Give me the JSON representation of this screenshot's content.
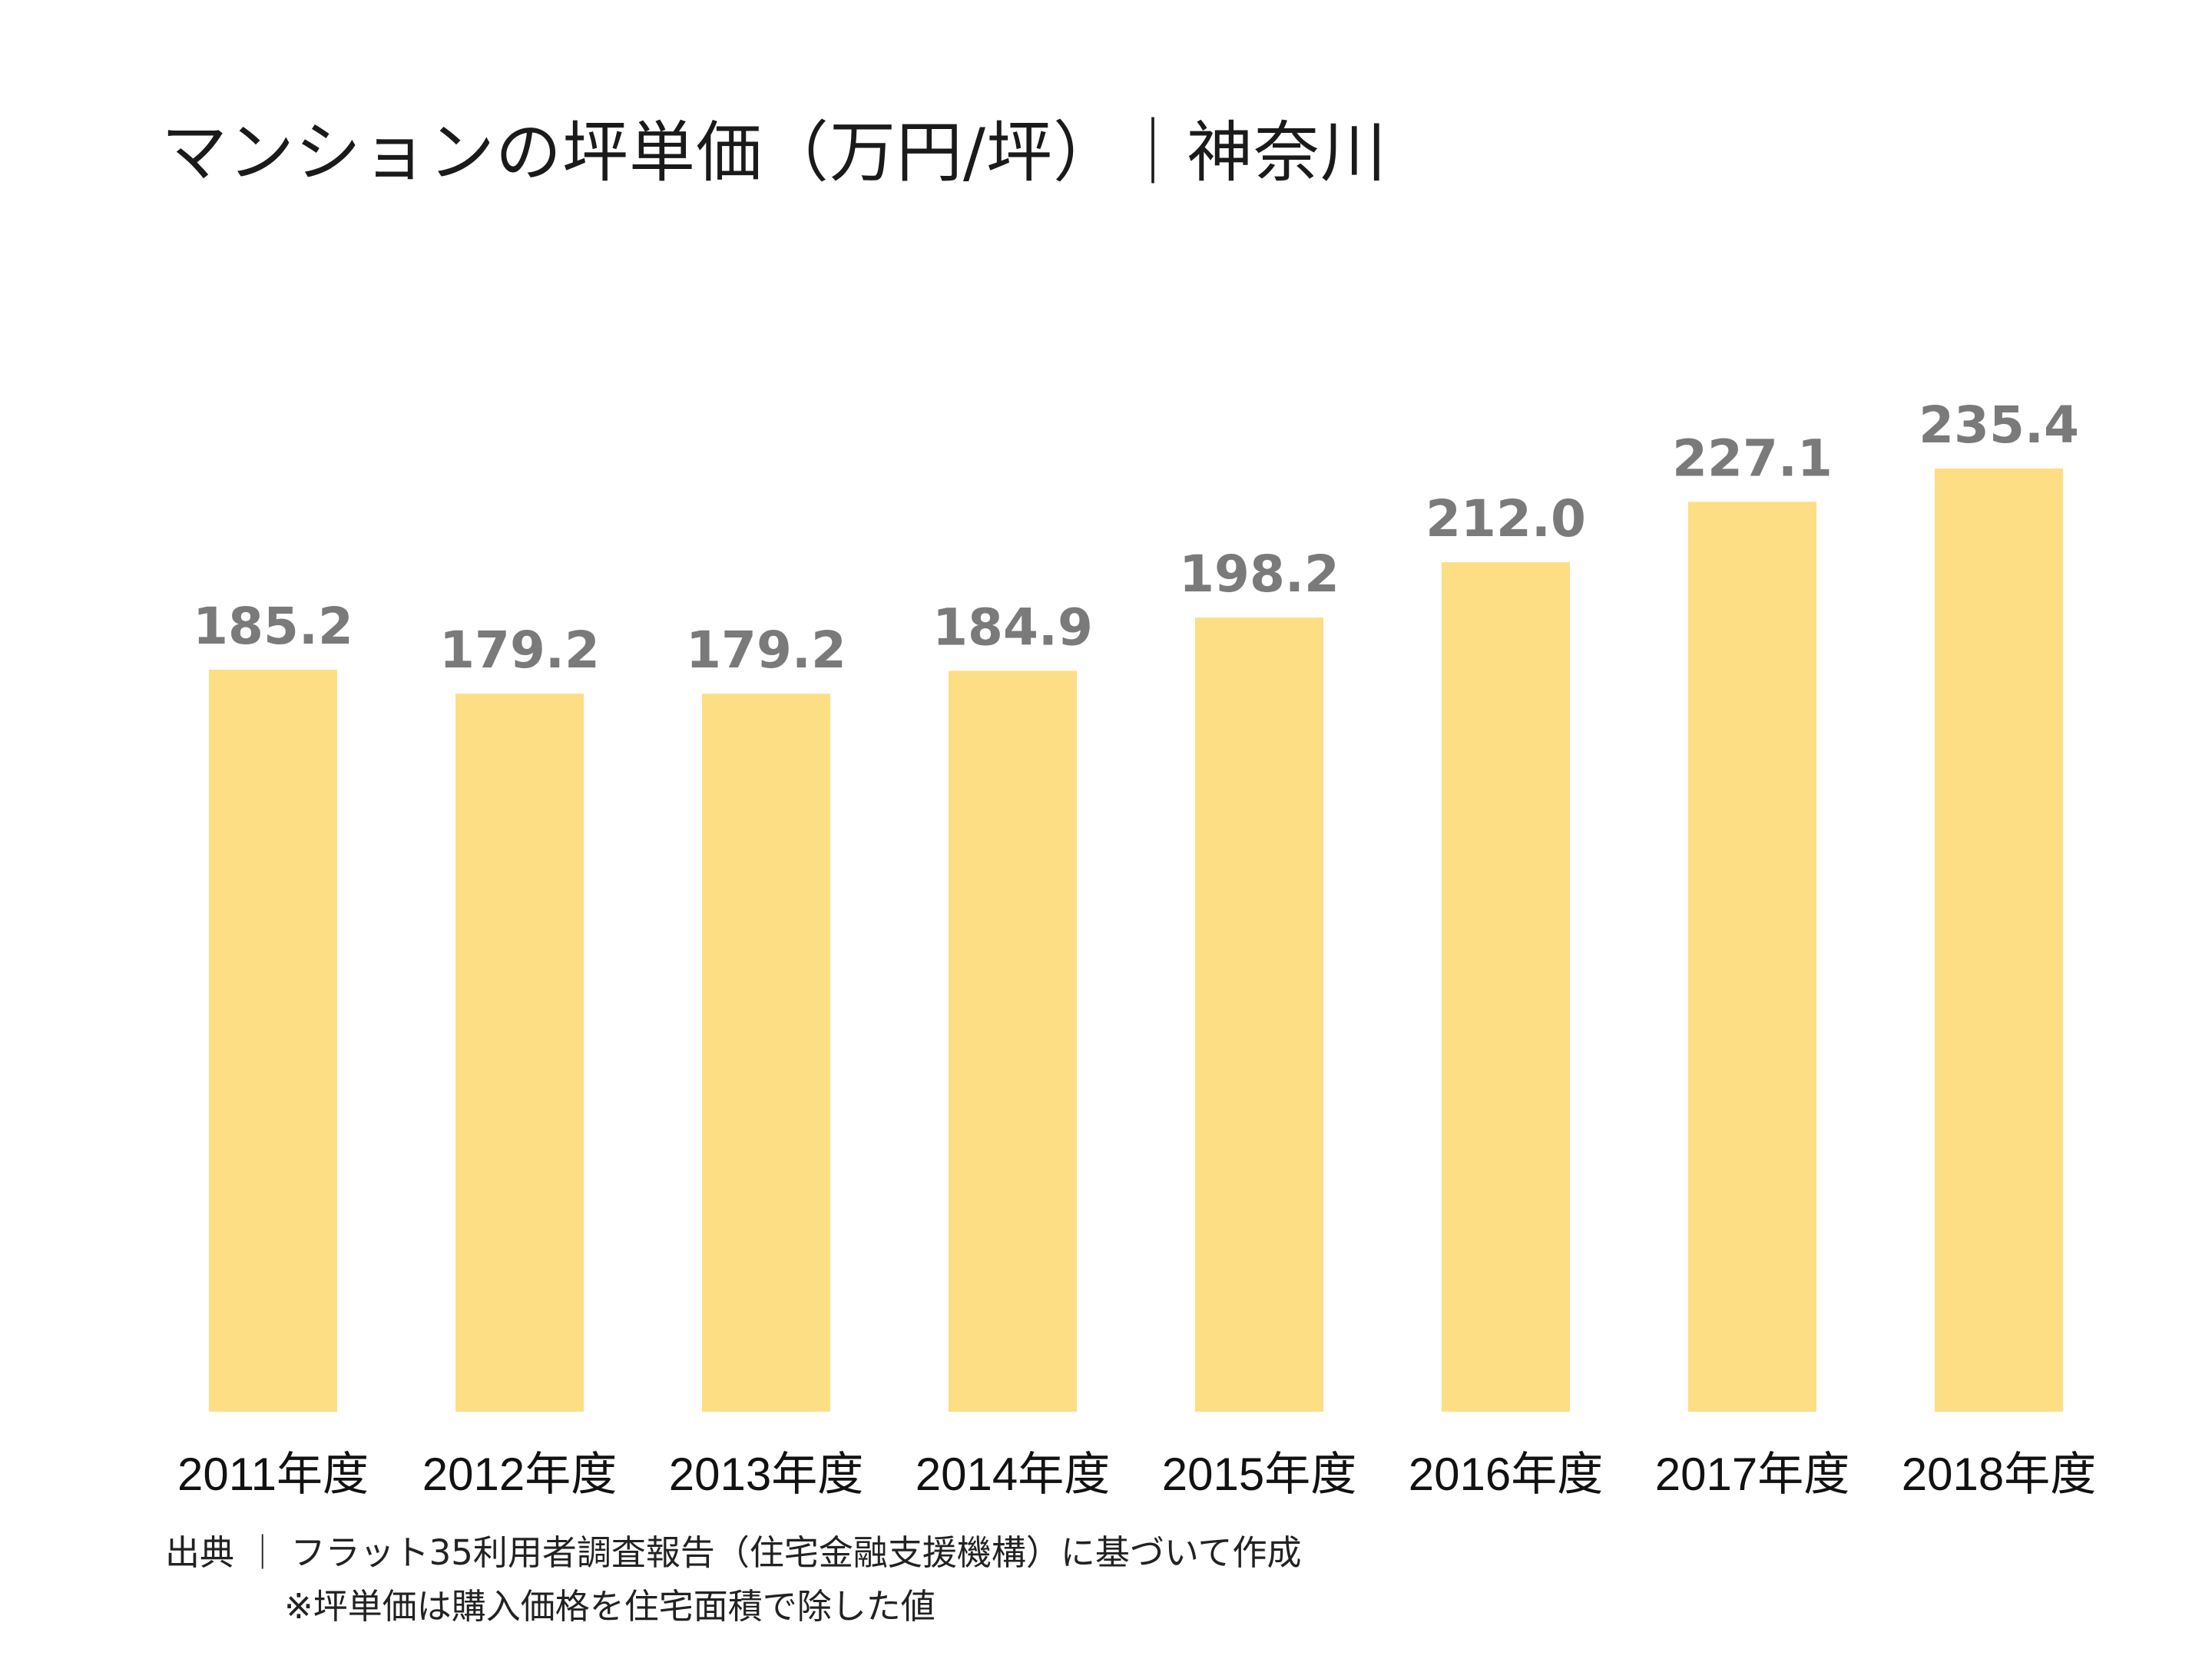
{
  "chart_data": {
    "type": "bar",
    "title": "マンションの坪単価（万円/坪）｜神奈川",
    "categories": [
      "2011年度",
      "2012年度",
      "2013年度",
      "2014年度",
      "2015年度",
      "2016年度",
      "2017年度",
      "2018年度"
    ],
    "values": [
      185.2,
      179.2,
      179.2,
      184.9,
      198.2,
      212.0,
      227.1,
      235.4
    ],
    "value_labels": [
      "185.2",
      "179.2",
      "179.2",
      "184.9",
      "198.2",
      "212.0",
      "227.1",
      "235.4"
    ],
    "xlabel": "",
    "ylabel": "",
    "ylim": [
      0,
      235.4
    ],
    "grid": false,
    "bar_color": "#FDDE84",
    "value_label_color": "#7A7A7A"
  },
  "notes": {
    "source": "出典 ｜ フラット35利用者調査報告（住宅金融支援機構）に基づいて作成",
    "footnote": "※坪単価は購入価格を住宅面積で除した値"
  }
}
